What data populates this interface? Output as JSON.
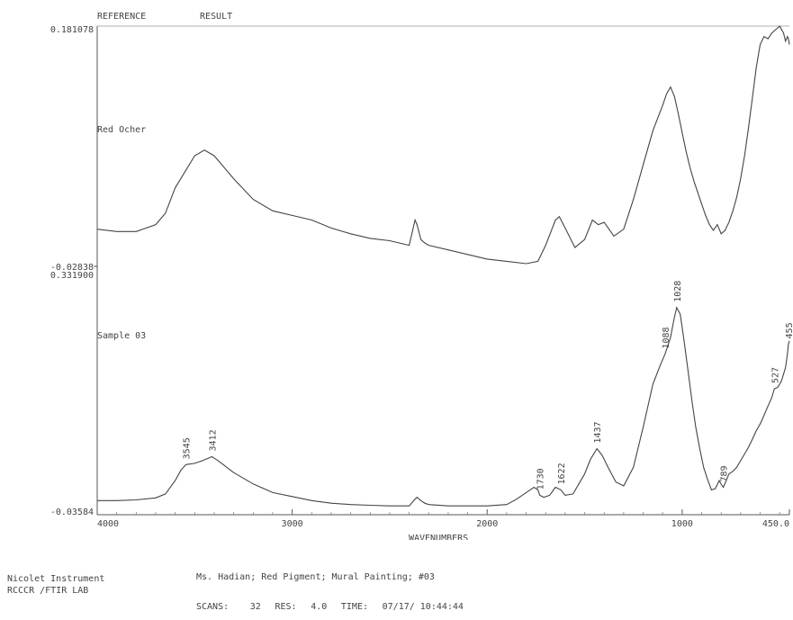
{
  "header": {
    "reference_label": "REFERENCE",
    "result_label": "RESULT"
  },
  "footer": {
    "instrument": "Nicolet Instrument",
    "lab": "RCCCR /FTIR LAB",
    "description": "Ms. Hadian; Red Pigment; Mural Painting; #03",
    "scans_label": "SCANS:",
    "scans": "32",
    "res_label": "RES:",
    "res": "4.0",
    "time_label": "TIME:",
    "time": "07/17/ 10:44:44"
  },
  "chart_data": [
    {
      "type": "line",
      "series": [
        {
          "name": "Red Ocher",
          "x": [
            4000,
            3900,
            3800,
            3700,
            3650,
            3600,
            3500,
            3450,
            3400,
            3300,
            3200,
            3100,
            3000,
            2900,
            2800,
            2700,
            2600,
            2500,
            2400,
            2370,
            2360,
            2340,
            2320,
            2300,
            2200,
            2100,
            2000,
            1900,
            1800,
            1740,
            1700,
            1650,
            1630,
            1600,
            1550,
            1500,
            1460,
            1430,
            1400,
            1350,
            1300,
            1250,
            1200,
            1150,
            1100,
            1080,
            1060,
            1040,
            1020,
            1000,
            980,
            960,
            940,
            920,
            900,
            880,
            860,
            840,
            820,
            800,
            780,
            760,
            740,
            720,
            700,
            680,
            660,
            640,
            620,
            600,
            580,
            560,
            540,
            520,
            500,
            480,
            470,
            460,
            455,
            450
          ],
          "y": [
            0.004,
            0.002,
            0.002,
            0.008,
            0.018,
            0.04,
            0.068,
            0.073,
            0.068,
            0.048,
            0.03,
            0.02,
            0.016,
            0.012,
            0.005,
            0.0,
            -0.004,
            -0.006,
            -0.01,
            0.012,
            0.008,
            -0.005,
            -0.008,
            -0.01,
            -0.014,
            -0.018,
            -0.022,
            -0.024,
            -0.026,
            -0.024,
            -0.01,
            0.012,
            0.015,
            0.005,
            -0.012,
            -0.005,
            0.012,
            0.008,
            0.01,
            -0.002,
            0.004,
            0.03,
            0.06,
            0.09,
            0.112,
            0.122,
            0.128,
            0.12,
            0.105,
            0.088,
            0.072,
            0.058,
            0.046,
            0.036,
            0.026,
            0.016,
            0.008,
            0.003,
            0.008,
            0.0,
            0.003,
            0.01,
            0.02,
            0.032,
            0.048,
            0.068,
            0.092,
            0.118,
            0.145,
            0.165,
            0.172,
            0.17,
            0.175,
            0.178,
            0.181,
            0.175,
            0.168,
            0.172,
            0.17,
            0.165
          ]
        }
      ],
      "annotations": [],
      "ylim": [
        -0.02838,
        0.181078
      ],
      "ytick_labels": [
        "0.181078",
        "-0.02838"
      ]
    },
    {
      "type": "line",
      "series": [
        {
          "name": "Sample 03",
          "x": [
            4000,
            3900,
            3800,
            3700,
            3650,
            3600,
            3570,
            3545,
            3500,
            3460,
            3412,
            3380,
            3300,
            3200,
            3100,
            3000,
            2900,
            2800,
            2700,
            2600,
            2500,
            2400,
            2370,
            2360,
            2340,
            2320,
            2300,
            2200,
            2100,
            2000,
            1900,
            1850,
            1800,
            1760,
            1740,
            1730,
            1710,
            1680,
            1650,
            1622,
            1600,
            1560,
            1500,
            1470,
            1437,
            1410,
            1380,
            1340,
            1300,
            1250,
            1200,
            1150,
            1110,
            1088,
            1060,
            1040,
            1028,
            1010,
            990,
            970,
            950,
            930,
            910,
            890,
            870,
            850,
            830,
            810,
            799,
            789,
            780,
            760,
            740,
            720,
            700,
            680,
            660,
            640,
            620,
            600,
            580,
            560,
            540,
            527,
            510,
            490,
            470,
            460,
            455,
            450
          ],
          "y": [
            -0.02,
            -0.02,
            -0.019,
            -0.016,
            -0.01,
            0.01,
            0.026,
            0.034,
            0.036,
            0.04,
            0.046,
            0.04,
            0.022,
            0.005,
            -0.008,
            -0.014,
            -0.02,
            -0.024,
            -0.026,
            -0.027,
            -0.028,
            -0.028,
            -0.018,
            -0.015,
            -0.02,
            -0.024,
            -0.026,
            -0.028,
            -0.028,
            -0.028,
            -0.026,
            -0.018,
            -0.008,
            0.0,
            -0.004,
            -0.012,
            -0.015,
            -0.012,
            0.0,
            -0.004,
            -0.012,
            -0.01,
            0.02,
            0.042,
            0.058,
            0.048,
            0.03,
            0.008,
            0.002,
            0.03,
            0.09,
            0.155,
            0.185,
            0.2,
            0.225,
            0.255,
            0.27,
            0.26,
            0.22,
            0.175,
            0.13,
            0.09,
            0.058,
            0.03,
            0.012,
            -0.004,
            -0.002,
            0.01,
            0.004,
            0.0,
            0.006,
            0.02,
            0.024,
            0.03,
            0.04,
            0.05,
            0.06,
            0.072,
            0.085,
            0.095,
            0.108,
            0.122,
            0.135,
            0.148,
            0.15,
            0.16,
            0.18,
            0.2,
            0.215,
            0.22
          ]
        }
      ],
      "annotations": [
        "3545",
        "3412",
        "1730",
        "1622",
        "1437",
        "1088",
        "1028",
        "789",
        "527",
        "455"
      ],
      "annotation_x": [
        3545,
        3412,
        1730,
        1622,
        1437,
        1088,
        1028,
        789,
        527,
        455
      ],
      "ylim": [
        -0.03584,
        0.3319
      ],
      "ytick_labels": [
        "0.331900",
        "-0.03584"
      ]
    }
  ],
  "x_axis": {
    "xlabel": "WAVENUMBERS",
    "tick_values": [
      4000,
      3000,
      2000,
      1000,
      450
    ],
    "tick_labels": [
      "4000",
      "3000",
      "2000",
      "1000",
      "450.0"
    ]
  }
}
